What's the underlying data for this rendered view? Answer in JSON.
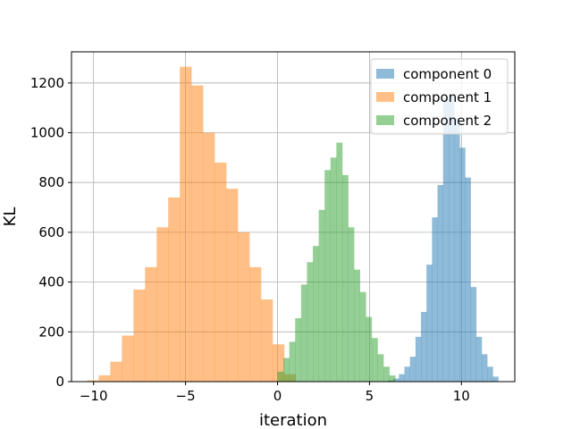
{
  "chart_data": {
    "type": "bar",
    "title": "",
    "xlabel": "iteration",
    "ylabel": "KL",
    "xlim": [
      -11.2,
      12.9
    ],
    "ylim": [
      0,
      1325
    ],
    "xticks": [
      -10,
      -5,
      0,
      5,
      10
    ],
    "xtick_labels": [
      "−10",
      "−5",
      "0",
      "5",
      "10"
    ],
    "yticks": [
      0,
      200,
      400,
      600,
      800,
      1000,
      1200
    ],
    "ytick_labels": [
      "0",
      "200",
      "400",
      "600",
      "800",
      "1000",
      "1200"
    ],
    "grid": true,
    "legend": "top-right",
    "series": [
      {
        "name": "component 0",
        "color": "#1f77b4",
        "opacity": 0.5,
        "bins": [
          [
            6.0,
            6.3,
            5
          ],
          [
            6.3,
            6.6,
            12
          ],
          [
            6.6,
            6.9,
            30
          ],
          [
            6.9,
            7.2,
            60
          ],
          [
            7.2,
            7.5,
            100
          ],
          [
            7.5,
            7.8,
            180
          ],
          [
            7.8,
            8.1,
            280
          ],
          [
            8.1,
            8.4,
            470
          ],
          [
            8.4,
            8.7,
            660
          ],
          [
            8.7,
            9.0,
            790
          ],
          [
            9.0,
            9.3,
            1140
          ],
          [
            9.3,
            9.6,
            1150
          ],
          [
            9.6,
            9.9,
            1060
          ],
          [
            9.9,
            10.2,
            940
          ],
          [
            10.2,
            10.5,
            820
          ],
          [
            10.5,
            10.8,
            380
          ],
          [
            10.8,
            11.1,
            180
          ],
          [
            11.1,
            11.4,
            110
          ],
          [
            11.4,
            11.7,
            60
          ],
          [
            11.7,
            12.0,
            20
          ]
        ]
      },
      {
        "name": "component 1",
        "color": "#ff7f0e",
        "opacity": 0.5,
        "bins": [
          [
            -10.35,
            -9.72,
            5
          ],
          [
            -9.72,
            -9.09,
            25
          ],
          [
            -9.09,
            -8.46,
            80
          ],
          [
            -8.46,
            -7.83,
            185
          ],
          [
            -7.83,
            -7.2,
            370
          ],
          [
            -7.2,
            -6.57,
            460
          ],
          [
            -6.57,
            -5.94,
            620
          ],
          [
            -5.94,
            -5.31,
            740
          ],
          [
            -5.31,
            -4.68,
            1265
          ],
          [
            -4.68,
            -4.05,
            1190
          ],
          [
            -4.05,
            -3.42,
            1000
          ],
          [
            -3.42,
            -2.79,
            880
          ],
          [
            -2.79,
            -2.16,
            775
          ],
          [
            -2.16,
            -1.53,
            600
          ],
          [
            -1.53,
            -0.9,
            460
          ],
          [
            -0.9,
            -0.27,
            330
          ],
          [
            -0.27,
            0.36,
            150
          ],
          [
            0.36,
            0.99,
            30
          ]
        ]
      },
      {
        "name": "component 2",
        "color": "#2ca02c",
        "opacity": 0.5,
        "bins": [
          [
            0.0,
            0.32,
            40
          ],
          [
            0.32,
            0.64,
            95
          ],
          [
            0.64,
            0.96,
            160
          ],
          [
            0.96,
            1.28,
            255
          ],
          [
            1.28,
            1.6,
            390
          ],
          [
            1.6,
            1.92,
            480
          ],
          [
            1.92,
            2.24,
            545
          ],
          [
            2.24,
            2.56,
            690
          ],
          [
            2.56,
            2.88,
            850
          ],
          [
            2.88,
            3.2,
            900
          ],
          [
            3.2,
            3.52,
            960
          ],
          [
            3.52,
            3.84,
            830
          ],
          [
            3.84,
            4.16,
            620
          ],
          [
            4.16,
            4.48,
            450
          ],
          [
            4.48,
            4.8,
            360
          ],
          [
            4.8,
            5.12,
            260
          ],
          [
            5.12,
            5.44,
            175
          ],
          [
            5.44,
            5.76,
            110
          ],
          [
            5.76,
            6.08,
            60
          ],
          [
            6.08,
            6.4,
            25
          ]
        ]
      }
    ]
  }
}
